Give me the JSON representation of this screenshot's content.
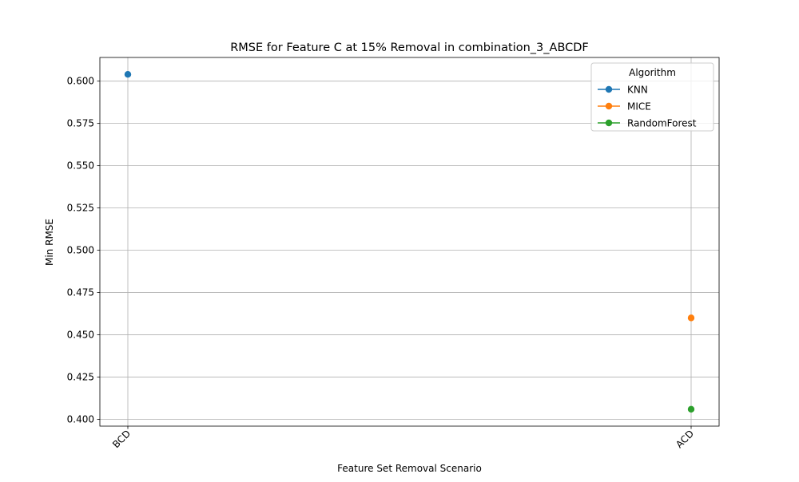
{
  "chart_data": {
    "type": "line",
    "title": "RMSE for Feature C at 15% Removal in combination_3_ABCDF",
    "xlabel": "Feature Set Removal Scenario",
    "ylabel": "Min RMSE",
    "categories": [
      "BCD",
      "ACD"
    ],
    "ylim": [
      0.396,
      0.614
    ],
    "yticks": [
      "0.400",
      "0.425",
      "0.450",
      "0.475",
      "0.500",
      "0.525",
      "0.550",
      "0.575",
      "0.600"
    ],
    "grid": true,
    "legend": {
      "title": "Algorithm",
      "placement": "top-right"
    },
    "series": [
      {
        "name": "KNN",
        "color": "#1f77b4",
        "values": [
          0.604,
          null
        ]
      },
      {
        "name": "MICE",
        "color": "#ff7f0e",
        "values": [
          null,
          0.46
        ]
      },
      {
        "name": "RandomForest",
        "color": "#2ca02c",
        "values": [
          null,
          0.406
        ]
      }
    ]
  }
}
